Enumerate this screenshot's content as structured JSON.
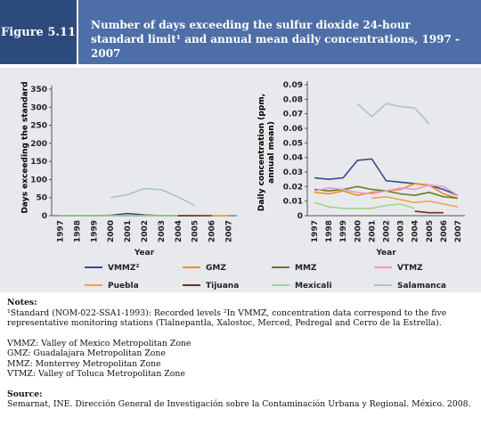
{
  "figure_label": "Figure 5.11",
  "title": "Number of days exceeding the sulfur dioxide 24-hour standard limit¹ and annual mean daily concentrations, 1997 - 2007",
  "chart_data": [
    {
      "type": "line",
      "xlabel": "Year",
      "ylabel": "Days exceeding the standard",
      "categories": [
        "1997",
        "1998",
        "1999",
        "2000",
        "2001",
        "2002",
        "2003",
        "2004",
        "2005",
        "2006",
        "2007"
      ],
      "ylim": [
        0,
        350
      ],
      "yticks": [
        0,
        50,
        100,
        150,
        200,
        250,
        300,
        350
      ],
      "series": [
        {
          "name": "VMMZ²",
          "color": "#3b4a8c",
          "values": [
            0,
            0,
            0,
            1,
            6,
            2,
            0,
            0,
            0,
            null,
            null
          ]
        },
        {
          "name": "GMZ",
          "color": "#e8901c",
          "values": [
            null,
            null,
            null,
            null,
            null,
            null,
            null,
            null,
            0,
            0,
            0
          ]
        },
        {
          "name": "MMZ",
          "color": "#6b7a1e",
          "values": [
            0,
            0,
            0,
            0,
            0,
            0,
            0,
            0,
            null,
            null,
            null
          ]
        },
        {
          "name": "VTMZ",
          "color": "#e59ad6",
          "values": [
            null,
            null,
            null,
            null,
            null,
            null,
            null,
            null,
            null,
            null,
            null
          ]
        },
        {
          "name": "Puebla",
          "color": "#f4a24a",
          "values": [
            null,
            null,
            null,
            null,
            null,
            null,
            null,
            null,
            null,
            null,
            null
          ]
        },
        {
          "name": "Tijuana",
          "color": "#6b3410",
          "values": [
            null,
            null,
            null,
            null,
            null,
            null,
            null,
            0,
            0,
            0,
            null
          ]
        },
        {
          "name": "Mexicali",
          "color": "#9fd68a",
          "values": [
            0,
            0,
            0,
            0,
            0,
            0,
            0,
            0,
            null,
            null,
            null
          ]
        },
        {
          "name": "Salamanca",
          "color": "#a9c4cf",
          "values": [
            null,
            null,
            null,
            50,
            58,
            75,
            72,
            52,
            28,
            null,
            null
          ]
        }
      ]
    },
    {
      "type": "line",
      "xlabel": "Year",
      "ylabel": "Daily concentration (ppm, annual mean)",
      "categories": [
        "1997",
        "1998",
        "1999",
        "2000",
        "2001",
        "2002",
        "2003",
        "2004",
        "2005",
        "2006",
        "2007"
      ],
      "ylim": [
        0,
        0.09
      ],
      "yticks": [
        0,
        0.01,
        0.02,
        0.03,
        0.04,
        0.05,
        0.06,
        0.07,
        0.08,
        0.09
      ],
      "series": [
        {
          "name": "VMMZ²",
          "color": "#3b4a8c",
          "values": [
            0.026,
            0.025,
            0.026,
            0.038,
            0.039,
            0.024,
            0.023,
            0.022,
            0.021,
            0.018,
            0.014
          ]
        },
        {
          "name": "GMZ",
          "color": "#e8901c",
          "values": [
            0.016,
            0.015,
            0.017,
            0.014,
            0.016,
            0.017,
            0.018,
            0.022,
            0.021,
            0.015,
            0.012
          ]
        },
        {
          "name": "MMZ",
          "color": "#6b7a1e",
          "values": [
            0.018,
            0.017,
            0.018,
            0.02,
            0.018,
            0.017,
            0.015,
            0.014,
            0.016,
            0.013,
            0.012
          ]
        },
        {
          "name": "VTMZ",
          "color": "#e59ad6",
          "values": [
            0.017,
            0.019,
            0.018,
            0.016,
            0.015,
            0.017,
            0.019,
            0.018,
            0.021,
            0.02,
            0.014
          ]
        },
        {
          "name": "Puebla",
          "color": "#f4a24a",
          "values": [
            null,
            null,
            null,
            null,
            0.012,
            0.013,
            0.011,
            0.009,
            0.01,
            0.008,
            0.006
          ]
        },
        {
          "name": "Tijuana",
          "color": "#6b3410",
          "values": [
            null,
            null,
            null,
            null,
            null,
            null,
            null,
            0.003,
            0.002,
            0.002,
            null
          ]
        },
        {
          "name": "Mexicali",
          "color": "#9fd68a",
          "values": [
            0.009,
            0.006,
            0.005,
            0.005,
            0.005,
            0.007,
            0.008,
            0.005,
            null,
            null,
            null
          ]
        },
        {
          "name": "Salamanca",
          "color": "#a9c4cf",
          "values": [
            null,
            null,
            null,
            0.077,
            0.068,
            0.077,
            0.075,
            0.074,
            0.063,
            null,
            null
          ]
        }
      ]
    }
  ],
  "notes": {
    "heading": "Notes:",
    "footnote": "¹Standard (NOM-022-SSA1-1993): Recorded levels ²In VMMZ, concentration data correspond to the five representative monitoring stations (Tlalnepantla, Xalostoc, Merced, Pedregal and Cerro de la Estrella).",
    "abbreviations": [
      "VMMZ: Valley of Mexico Metropolitan Zone",
      "GMZ: Guadalajara Metropolitan Zone",
      "MMZ: Monterrey Metropolitan Zone",
      "VTMZ: Valley of Toluca Metropolitan Zone"
    ]
  },
  "source": {
    "heading": "Source:",
    "text": "Semarnat, INE. Dirección General de Investigación sobre la Contaminación Urbana y Regional. México. 2008."
  }
}
